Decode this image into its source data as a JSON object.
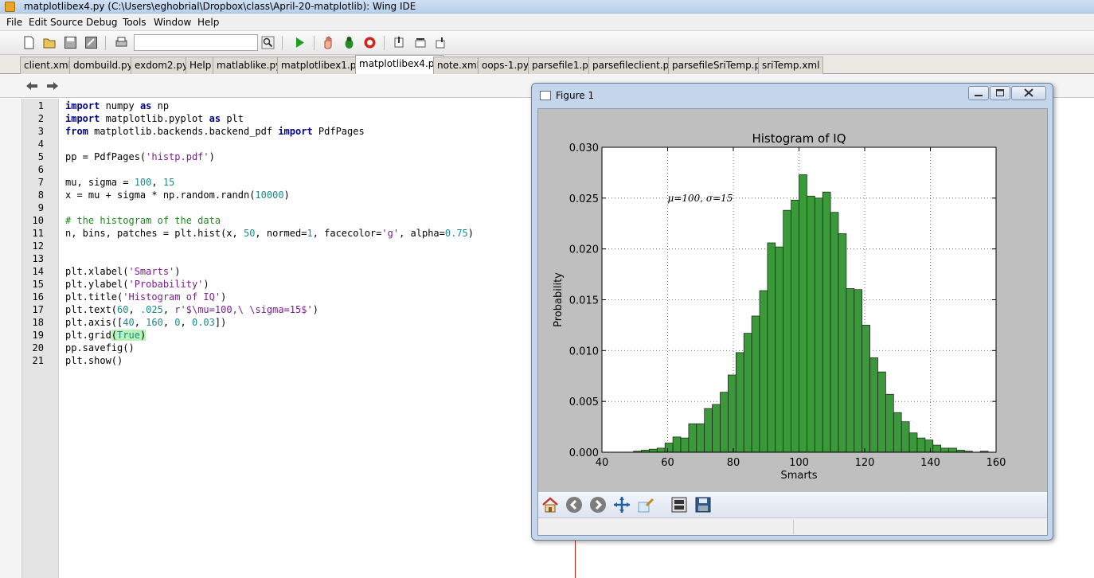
{
  "window": {
    "title": "matplotlibex4.py (C:\\Users\\eghobrial\\Dropbox\\class\\April-20-matplotlib): Wing IDE"
  },
  "menu": [
    "File",
    "Edit",
    "Source",
    "Debug",
    "Tools",
    "Window",
    "Help"
  ],
  "toolbar": {
    "search_value": ""
  },
  "tabs": [
    "client.xml",
    "dombuild.py",
    "exdom2.py",
    "Help",
    "matlablike.py",
    "matplotlibex1.py",
    "matplotlibex4.py",
    "note.xml",
    "oops-1.py",
    "parsefile1.py",
    "parsefileclient.py",
    "parsefileSriTemp.py",
    "sriTemp.xml"
  ],
  "active_tab": "matplotlibex4.py",
  "editor": {
    "line_numbers": [
      "1",
      "2",
      "3",
      "4",
      "5",
      "6",
      "7",
      "8",
      "9",
      "10",
      "11",
      "12",
      "13",
      "14",
      "15",
      "16",
      "17",
      "18",
      "19",
      "20",
      "21"
    ]
  },
  "figure": {
    "title": "Figure 1",
    "toolbar_icons": [
      "home-icon",
      "back-icon",
      "forward-icon",
      "pan-icon",
      "zoom-icon",
      "subplots-icon",
      "save-icon"
    ]
  },
  "chart_data": {
    "type": "bar",
    "title": "Histogram of IQ",
    "xlabel": "Smarts",
    "ylabel": "Probability",
    "xlim": [
      40,
      160
    ],
    "ylim": [
      0,
      0.03
    ],
    "xticks": [
      "40",
      "60",
      "80",
      "100",
      "120",
      "140",
      "160"
    ],
    "yticks": [
      "0.000",
      "0.005",
      "0.010",
      "0.015",
      "0.020",
      "0.025",
      "0.030"
    ],
    "annotation": "μ=100, σ=15",
    "grid": true,
    "bar_color": "#3a9a3a",
    "bin_width": 2.4,
    "bin_starts": [
      40.0,
      42.4,
      44.8,
      47.2,
      49.6,
      52.0,
      54.4,
      56.8,
      59.2,
      61.6,
      64.0,
      66.4,
      68.8,
      71.2,
      73.6,
      76.0,
      78.4,
      80.8,
      83.2,
      85.6,
      88.0,
      90.4,
      92.8,
      95.2,
      97.6,
      100.0,
      102.4,
      104.8,
      107.2,
      109.6,
      112.0,
      114.4,
      116.8,
      119.2,
      121.6,
      124.0,
      126.4,
      128.8,
      131.2,
      133.6,
      136.0,
      138.4,
      140.8,
      143.2,
      145.6,
      148.0,
      150.4,
      152.8,
      155.2,
      157.6
    ],
    "values": [
      0.0,
      0.0,
      0.0,
      0.0,
      0.0001,
      0.0002,
      0.0003,
      0.0004,
      0.0009,
      0.0015,
      0.0014,
      0.0028,
      0.0028,
      0.0043,
      0.0047,
      0.0059,
      0.0076,
      0.0098,
      0.0117,
      0.0134,
      0.0159,
      0.0206,
      0.0202,
      0.0238,
      0.0248,
      0.0273,
      0.0252,
      0.025,
      0.0256,
      0.0236,
      0.0215,
      0.0161,
      0.016,
      0.0125,
      0.0093,
      0.0079,
      0.0057,
      0.0039,
      0.003,
      0.0019,
      0.0014,
      0.0012,
      0.0007,
      0.0004,
      0.0004,
      0.0002,
      0.0001,
      0.0,
      0.0001,
      0.0
    ]
  }
}
